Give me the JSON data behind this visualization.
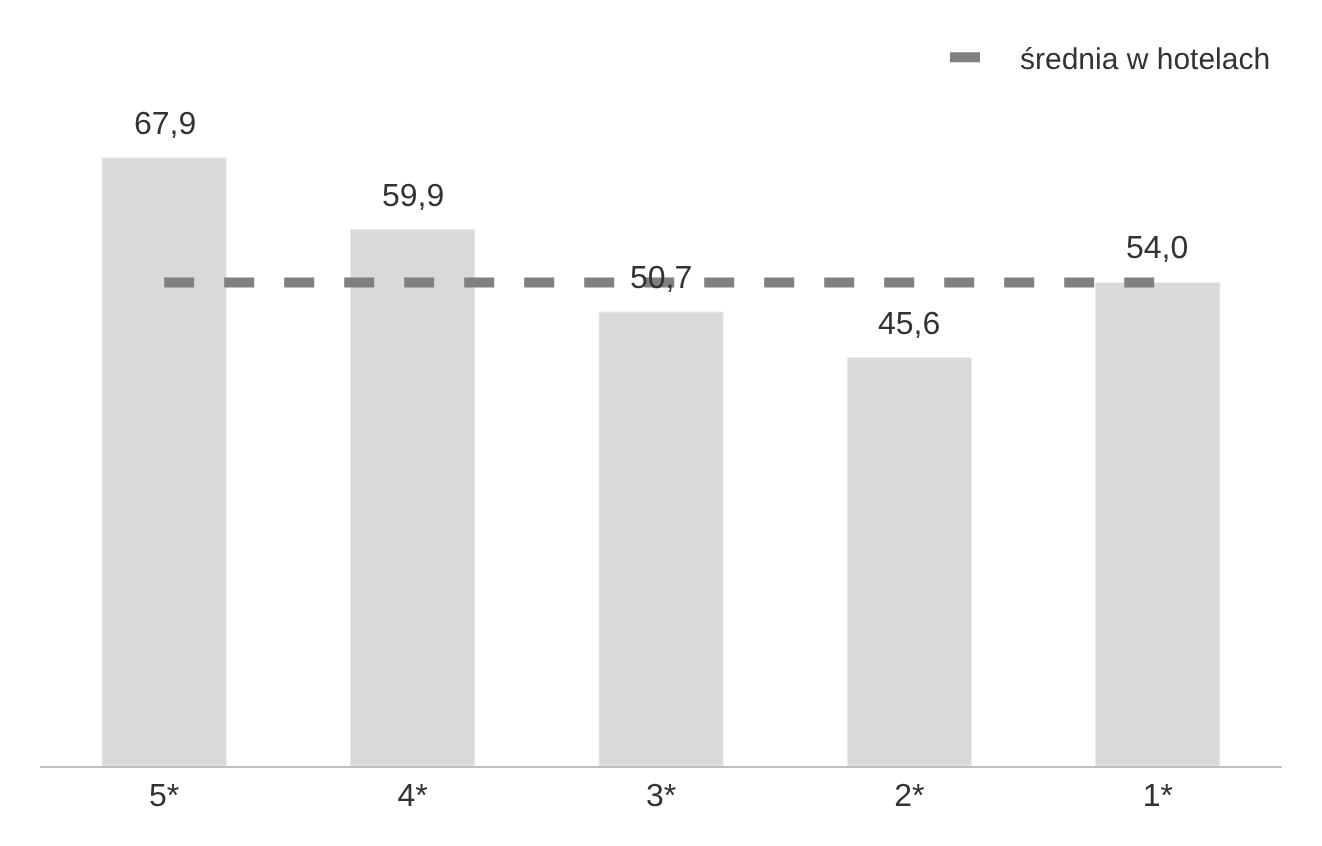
{
  "chart_data": {
    "type": "bar",
    "categories": [
      "5*",
      "4*",
      "3*",
      "2*",
      "1*"
    ],
    "series": [
      {
        "color": "#d9d9d9",
        "values": [
          67.9,
          59.9,
          50.7,
          45.6,
          54.0
        ],
        "value_labels": [
          "67,9",
          "59,9",
          "50,7",
          "45,6",
          "54,0"
        ]
      },
      {
        "type": "line",
        "name": "średnia w hotelach",
        "color": "#808080",
        "values": [
          54.0,
          54.0,
          54.0,
          54.0,
          54.0
        ],
        "line_style": "dashed",
        "marker": "none"
      }
    ],
    "legend": "top right"
  }
}
